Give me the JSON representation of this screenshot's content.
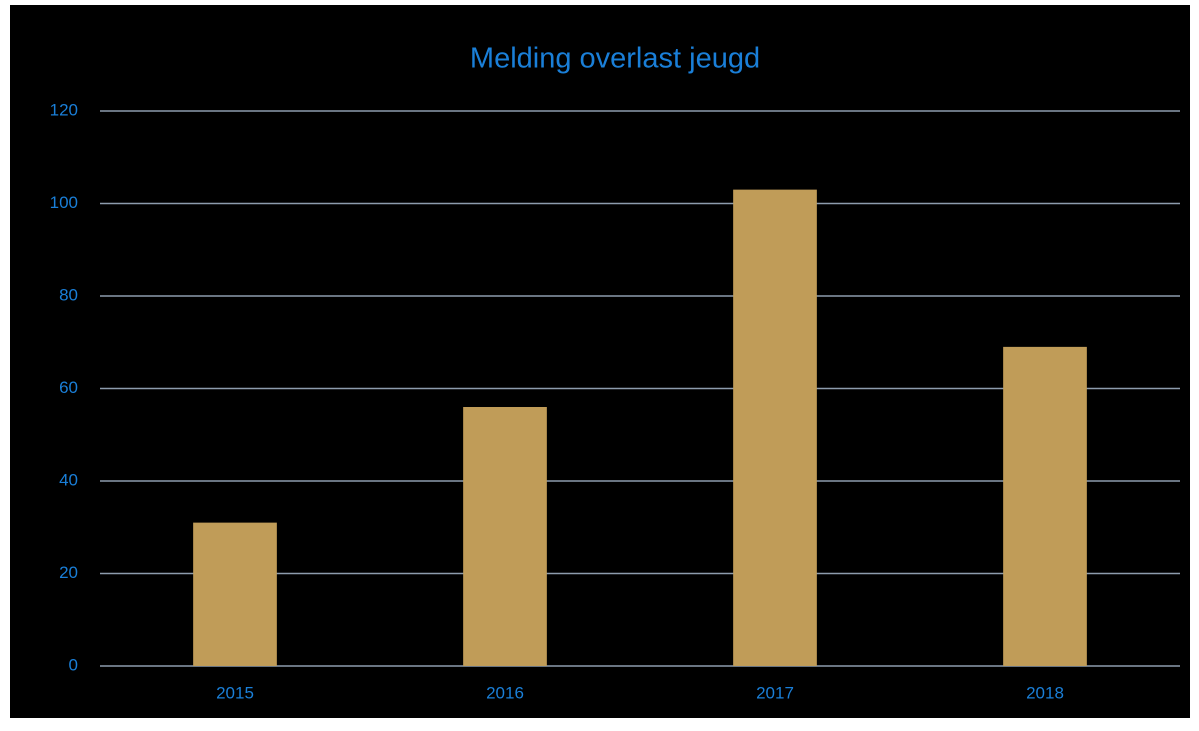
{
  "chart_data": {
    "type": "bar",
    "title": "Melding overlast jeugd",
    "categories": [
      "2015",
      "2016",
      "2017",
      "2018"
    ],
    "values": [
      31,
      56,
      103,
      69
    ],
    "color": "#c09c58",
    "ylim": [
      0,
      120
    ],
    "yticks": [
      0,
      20,
      40,
      60,
      80,
      100,
      120
    ],
    "grid": true
  }
}
